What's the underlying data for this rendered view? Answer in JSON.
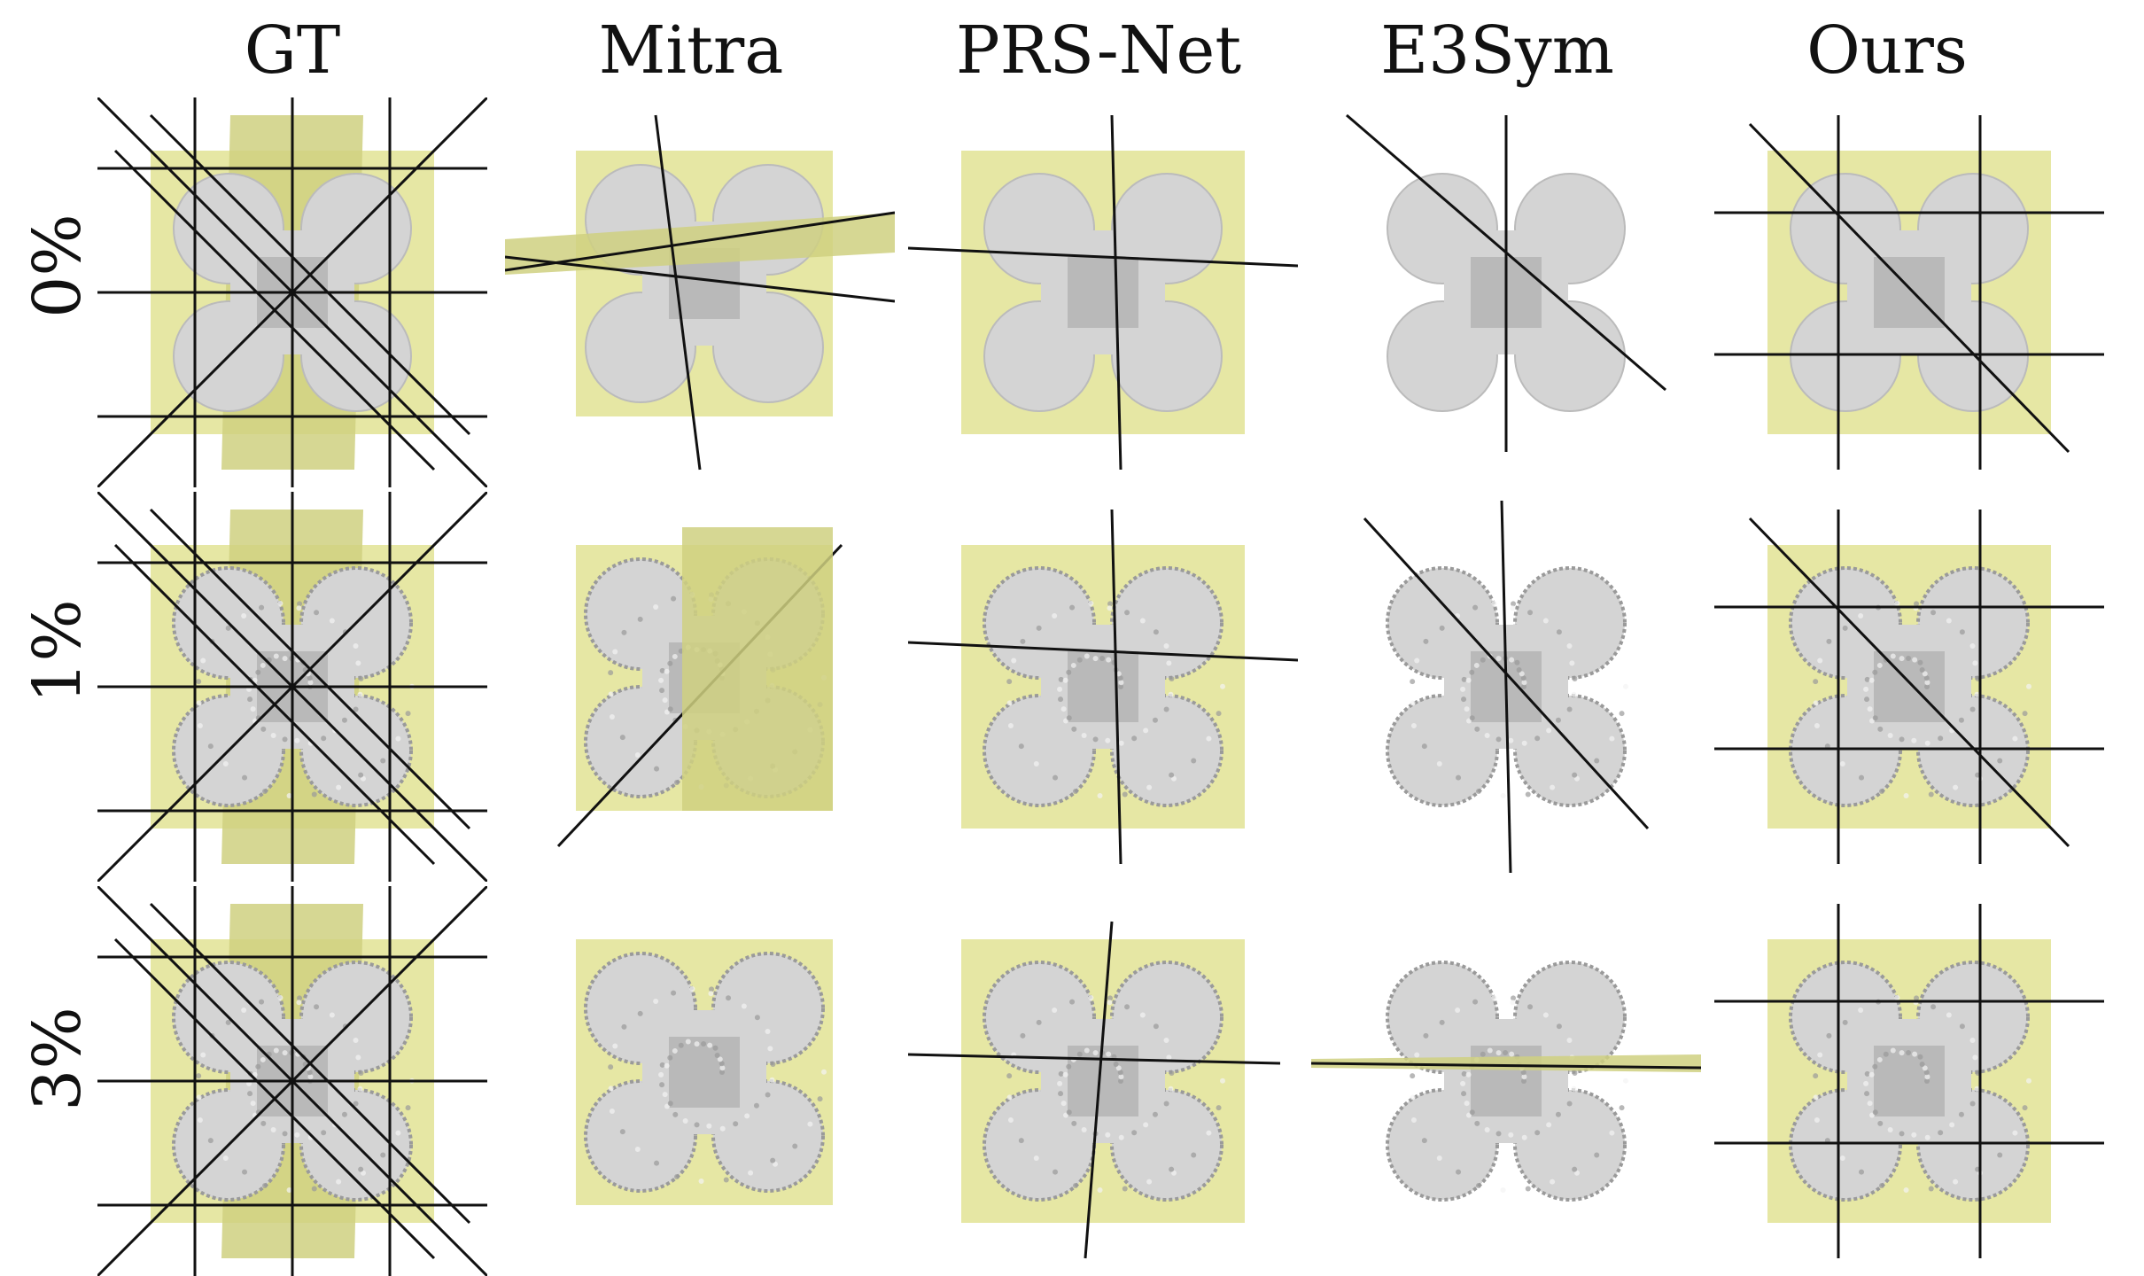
{
  "figure": {
    "columns": [
      "GT",
      "Mitra",
      "PRS-Net",
      "E3Sym",
      "Ours"
    ],
    "rows": [
      "0%",
      "1%",
      "3%"
    ]
  },
  "colors": {
    "plane_fill": "#e2e394",
    "plane_shadow": "#cfd080",
    "plane_line": "#111111",
    "shape_fill": "#d4d4d4",
    "shape_dark": "#9a9a9a",
    "shape_noise": "#f4f4f4"
  }
}
